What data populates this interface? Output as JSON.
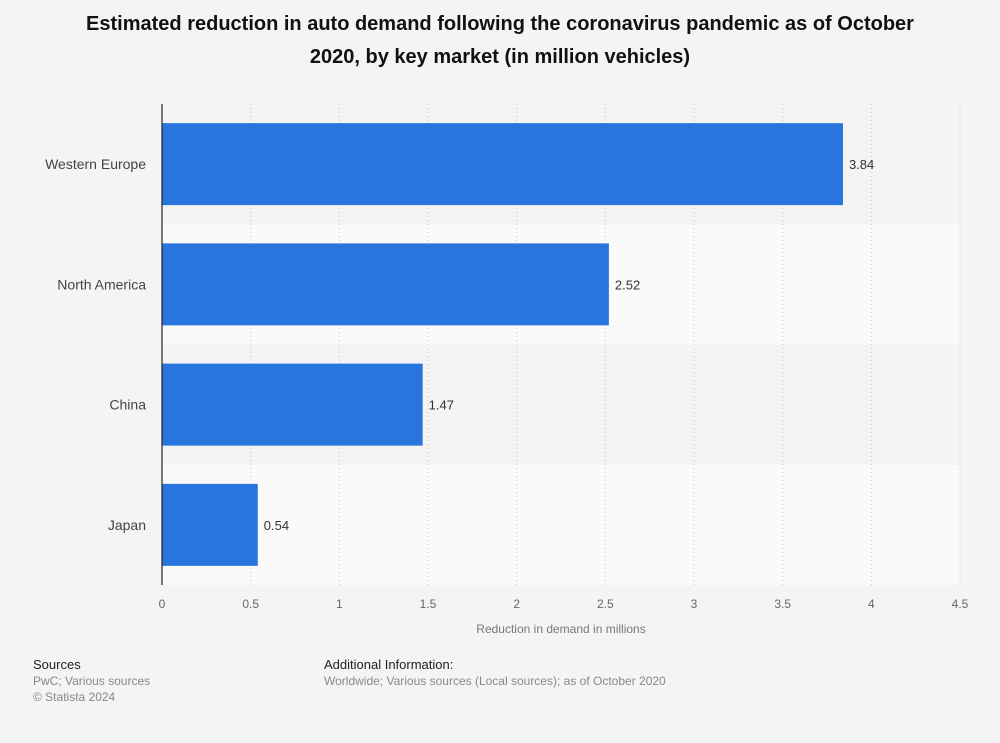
{
  "chart_data": {
    "type": "bar",
    "orientation": "horizontal",
    "title": "Estimated reduction in auto demand following the coronavirus pandemic as of October 2020, by key market (in million vehicles)",
    "categories": [
      "Western Europe",
      "North America",
      "China",
      "Japan"
    ],
    "values": [
      3.84,
      2.52,
      1.47,
      0.54
    ],
    "value_labels": [
      "3.84",
      "2.52",
      "1.47",
      "0.54"
    ],
    "xlabel": "Reduction in demand in millions",
    "ylabel": "",
    "xlim": [
      0,
      4.5
    ],
    "ticks": [
      0,
      0.5,
      1,
      1.5,
      2,
      2.5,
      3,
      3.5,
      4,
      4.5
    ],
    "tick_labels": [
      "0",
      "0.5",
      "1",
      "1.5",
      "2",
      "2.5",
      "3",
      "3.5",
      "4",
      "4.5"
    ],
    "grid": true,
    "bar_color": "#2876dd"
  },
  "footer": {
    "sources_heading": "Sources",
    "sources_line1": "PwC; Various sources",
    "sources_line2": "© Statista 2024",
    "additional_heading": "Additional Information:",
    "additional_text": "Worldwide; Various sources (Local sources); as of October 2020"
  },
  "colors": {
    "background": "#f4f4f4",
    "band_alt": "#fafafa",
    "bar": "#2876dd",
    "axis": "#222222",
    "grid": "#c8c8c8"
  }
}
